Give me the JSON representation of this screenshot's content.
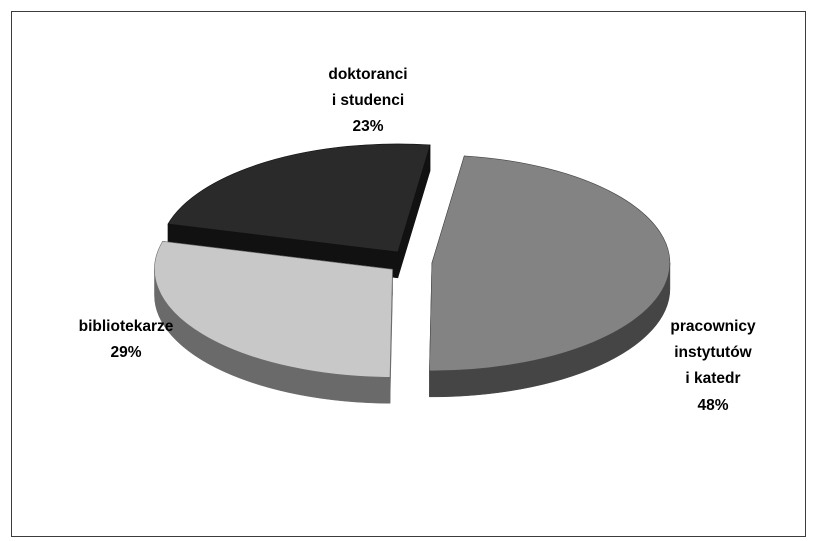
{
  "chart_data": {
    "type": "pie",
    "style": "3d-exploded",
    "slices": [
      {
        "label_lines": [
          "doktoranci",
          "i studenci"
        ],
        "percent_label": "23%",
        "value": 23,
        "color": "#2a2a2a",
        "side_color": "#111111"
      },
      {
        "label_lines": [
          "pracownicy",
          "instytutów",
          "i katedr"
        ],
        "percent_label": "48%",
        "value": 48,
        "color": "#838383",
        "side_color": "#454545"
      },
      {
        "label_lines": [
          "bibliotekarze"
        ],
        "percent_label": "29%",
        "value": 29,
        "color": "#c8c8c8",
        "side_color": "#6a6a6a"
      }
    ]
  }
}
